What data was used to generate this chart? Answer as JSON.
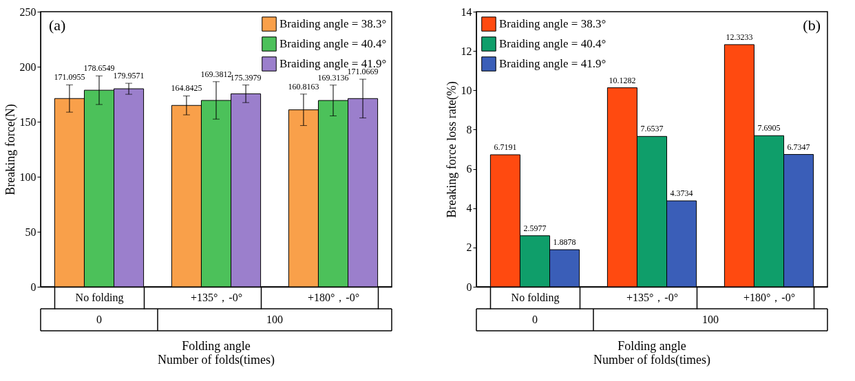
{
  "chart_data": [
    {
      "type": "bar",
      "ylabel": "Breaking force(N)",
      "xlabel": "Folding angle\nNumber of folds(times)",
      "categories": [
        "No folding",
        "+135°，-0°",
        "+180°，-0°"
      ],
      "ylim": [
        0,
        250
      ],
      "yticks": [
        0,
        50,
        100,
        150,
        200,
        250
      ],
      "grid": false,
      "legend": "top right",
      "data_labels": true,
      "annotations": [
        "(a)",
        "0",
        "100"
      ],
      "series": [
        {
          "name": "Braiding angle = 38.3°",
          "color": "#f9a04a",
          "values": [
            171.0955,
            164.8425,
            160.8163
          ],
          "errors": [
            12.4,
            8.6,
            14.3
          ]
        },
        {
          "name": "Braiding angle = 40.4°",
          "color": "#4cc15a",
          "values": [
            178.6549,
            169.3812,
            169.3136
          ],
          "errors": [
            13,
            17,
            14
          ]
        },
        {
          "name": "Braiding angle = 41.9°",
          "color": "#9b7fcc",
          "values": [
            179.9571,
            175.3979,
            171.0669
          ],
          "errors": [
            5,
            8,
            17.6
          ]
        }
      ]
    },
    {
      "type": "bar",
      "ylabel": "Breaking force loss rate(%)",
      "xlabel": "Folding angle\nNumber of folds(times)",
      "categories": [
        "No folding",
        "+135°，-0°",
        "+180°，-0°"
      ],
      "ylim": [
        0,
        14
      ],
      "yticks": [
        0,
        2,
        4,
        6,
        8,
        10,
        12,
        14
      ],
      "grid": false,
      "legend": "top left",
      "data_labels": true,
      "annotations": [
        "(b)",
        "0",
        "100"
      ],
      "series": [
        {
          "name": "Braiding angle = 38.3°",
          "color": "#ff4a10",
          "values": [
            6.7191,
            10.1282,
            12.3233
          ]
        },
        {
          "name": "Braiding angle = 40.4°",
          "color": "#0f9e6a",
          "values": [
            2.5977,
            7.6537,
            7.6905
          ]
        },
        {
          "name": "Braiding angle = 41.9°",
          "color": "#3a5eb8",
          "values": [
            1.8878,
            4.3734,
            6.7347
          ]
        }
      ]
    }
  ]
}
